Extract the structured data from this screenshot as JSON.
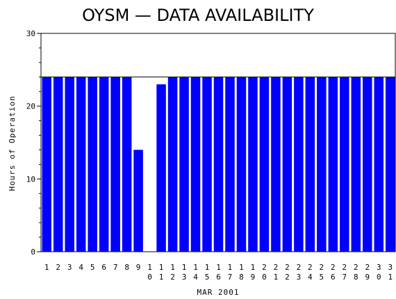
{
  "chart_data": {
    "type": "bar",
    "title": "OYSM — DATA AVAILABILITY",
    "xlabel": "MAR 2001",
    "ylabel": "Hours of Operation",
    "categories": [
      "1",
      "2",
      "3",
      "4",
      "5",
      "6",
      "7",
      "8",
      "9",
      "10",
      "11",
      "12",
      "13",
      "14",
      "15",
      "16",
      "17",
      "18",
      "19",
      "20",
      "21",
      "22",
      "23",
      "24",
      "25",
      "26",
      "27",
      "28",
      "29",
      "30",
      "31"
    ],
    "values": [
      24,
      24,
      24,
      24,
      24,
      24,
      24,
      24,
      14,
      0,
      23,
      24,
      24,
      24,
      24,
      24,
      24,
      24,
      24,
      24,
      24,
      24,
      24,
      24,
      24,
      24,
      24,
      24,
      24,
      24,
      24
    ],
    "ylim": [
      0,
      30
    ],
    "yticks": [
      0,
      10,
      20,
      30
    ],
    "grid": false,
    "bar_color": "#0000ff"
  }
}
